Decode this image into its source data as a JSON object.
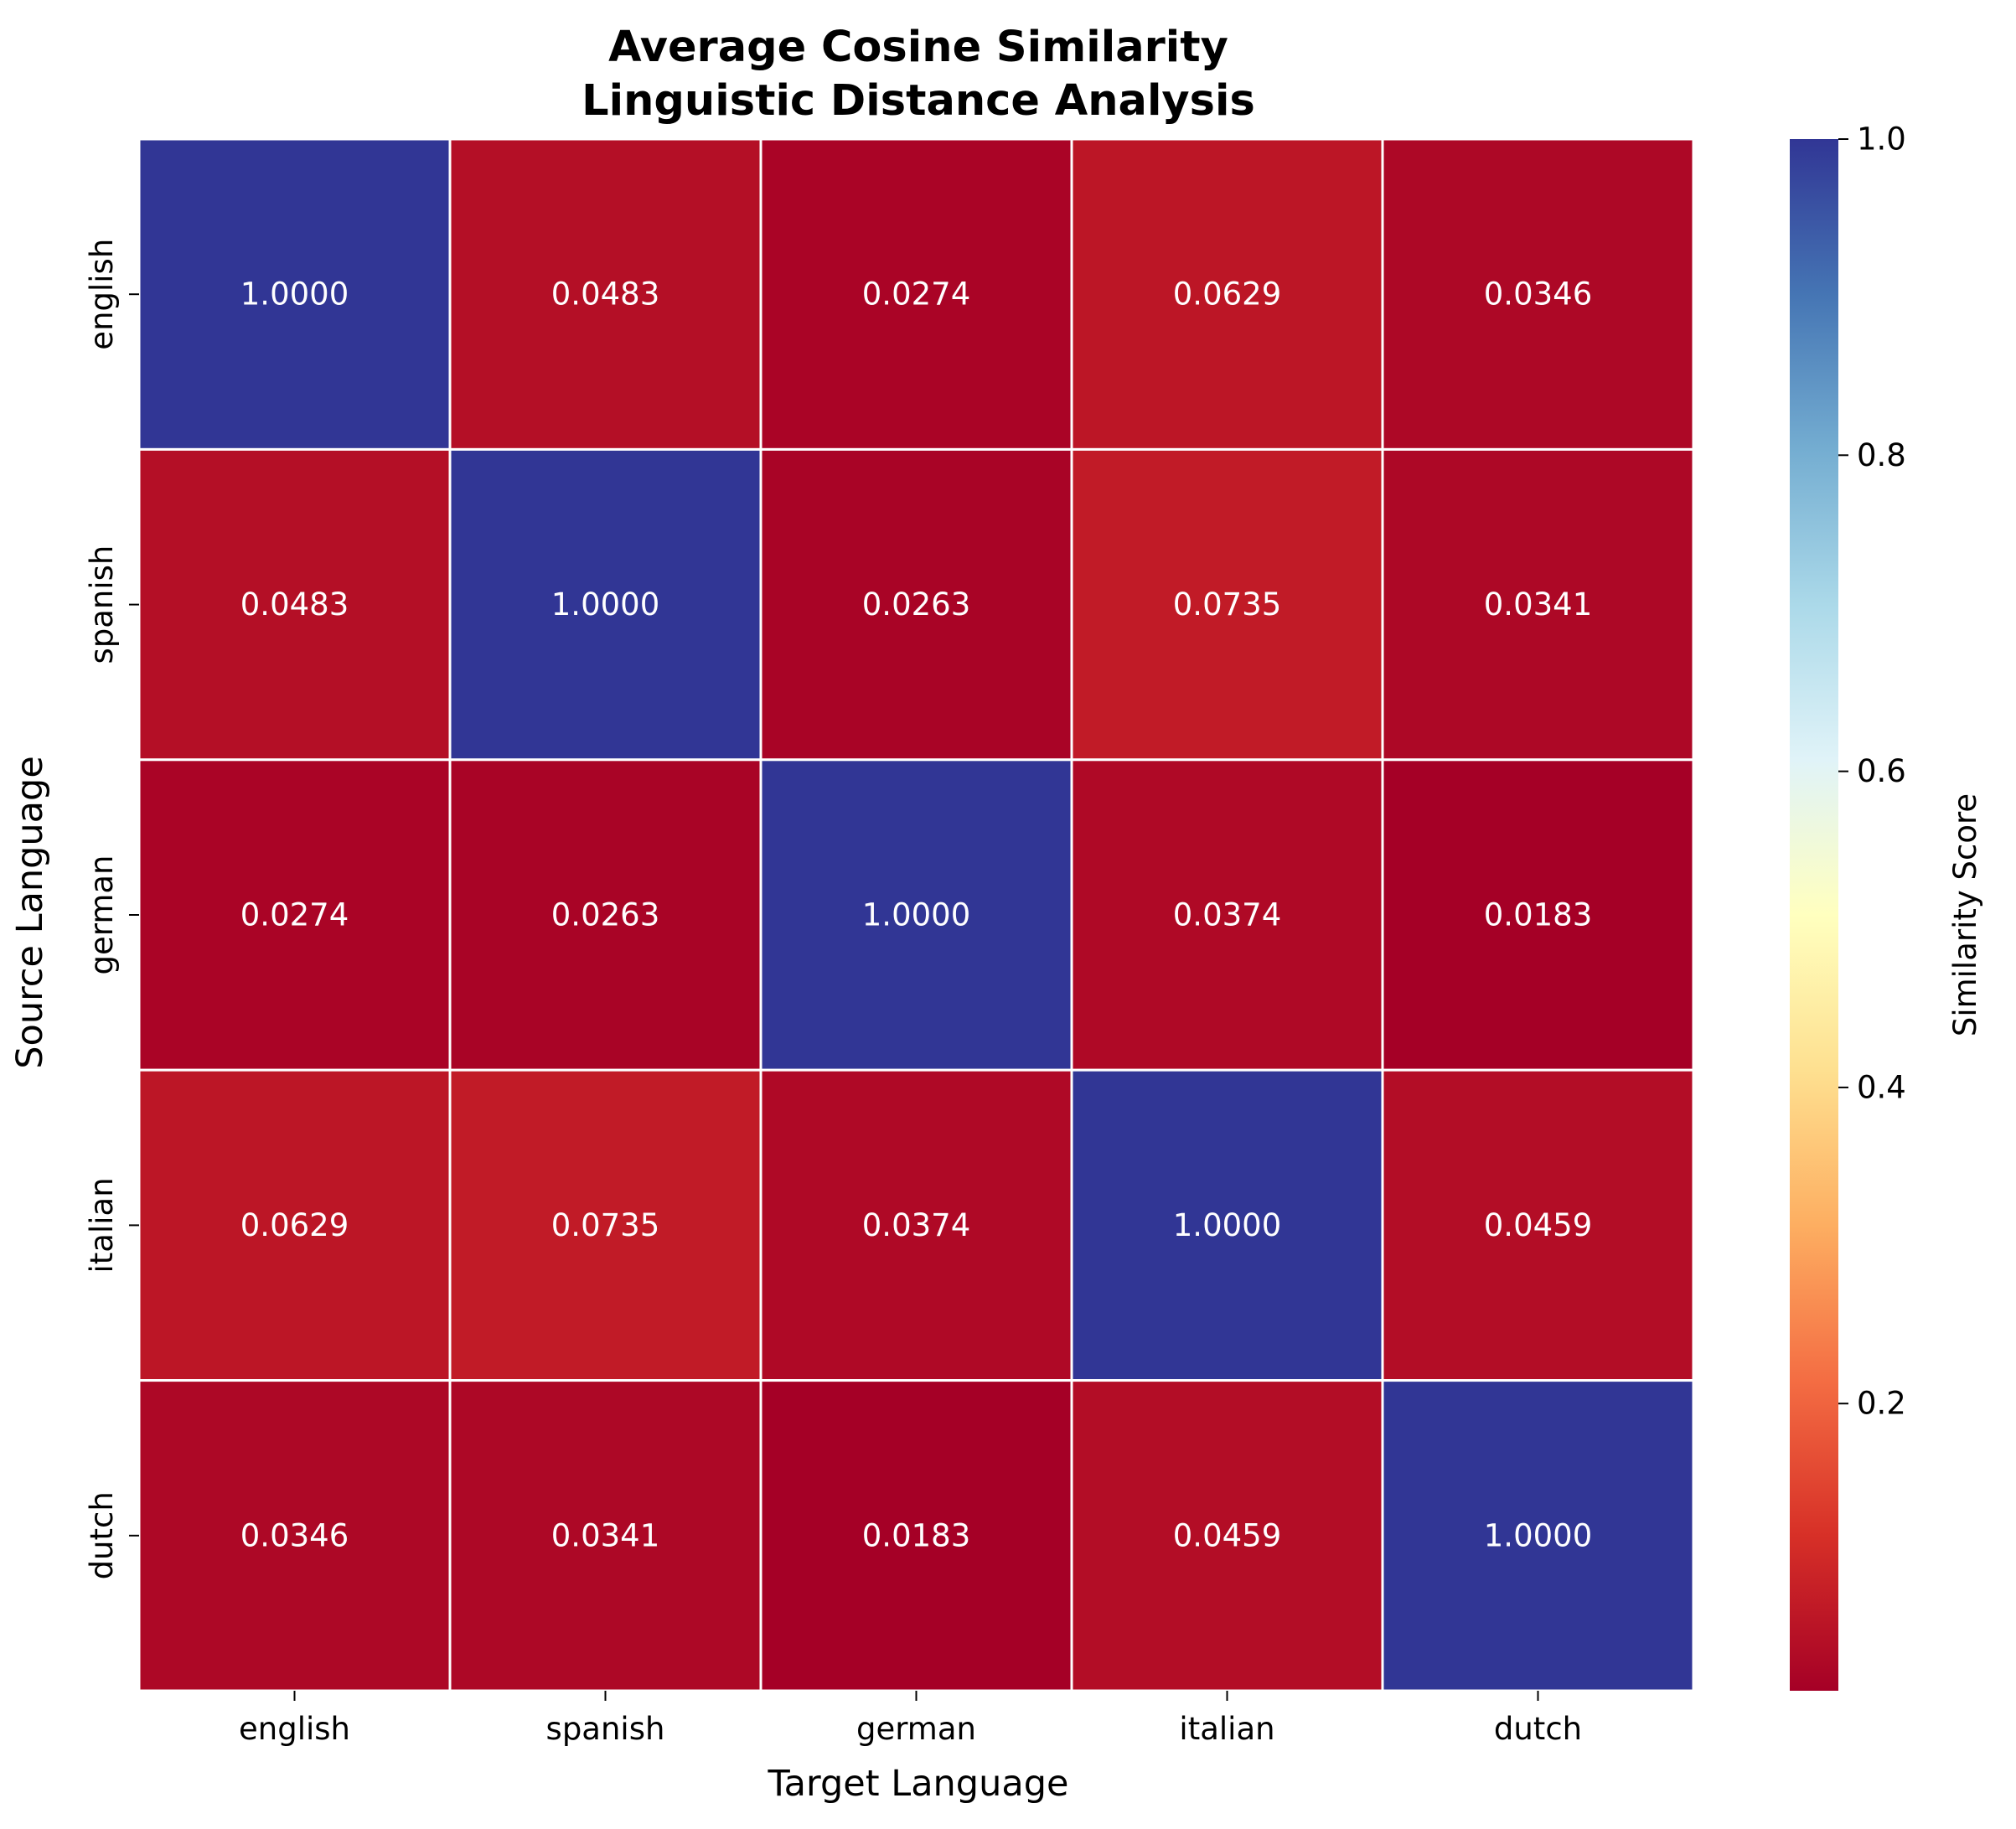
{
  "chart_data": {
    "type": "heatmap",
    "title_lines": [
      "Average Cosine Similarity",
      "Linguistic Distance Analysis"
    ],
    "xlabel": "Target Language",
    "ylabel": "Source Language",
    "x_categories": [
      "english",
      "spanish",
      "german",
      "italian",
      "dutch"
    ],
    "y_categories": [
      "english",
      "spanish",
      "german",
      "italian",
      "dutch"
    ],
    "values": [
      [
        1.0,
        0.0483,
        0.0274,
        0.0629,
        0.0346
      ],
      [
        0.0483,
        1.0,
        0.0263,
        0.0735,
        0.0341
      ],
      [
        0.0274,
        0.0263,
        1.0,
        0.0374,
        0.0183
      ],
      [
        0.0629,
        0.0735,
        0.0374,
        1.0,
        0.0459
      ],
      [
        0.0346,
        0.0341,
        0.0183,
        0.0459,
        1.0
      ]
    ],
    "value_format_decimals": 4,
    "colorbar": {
      "label": "Similarity Score",
      "range": [
        0.0183,
        1.0
      ],
      "ticks": [
        0.2,
        0.4,
        0.6,
        0.8,
        1.0
      ],
      "tick_labels": [
        "0.2",
        "0.4",
        "0.6",
        "0.8",
        "1.0"
      ],
      "colormap": "RdYlBu",
      "colormap_stops": [
        "#a50026",
        "#d73027",
        "#f46d43",
        "#fdae61",
        "#fee090",
        "#ffffbf",
        "#e0f3f8",
        "#abd9e9",
        "#74add1",
        "#4575b4",
        "#313695"
      ]
    },
    "annotation_color": "#ffffff",
    "cell_border_color": "#ffffff",
    "grid": false
  }
}
